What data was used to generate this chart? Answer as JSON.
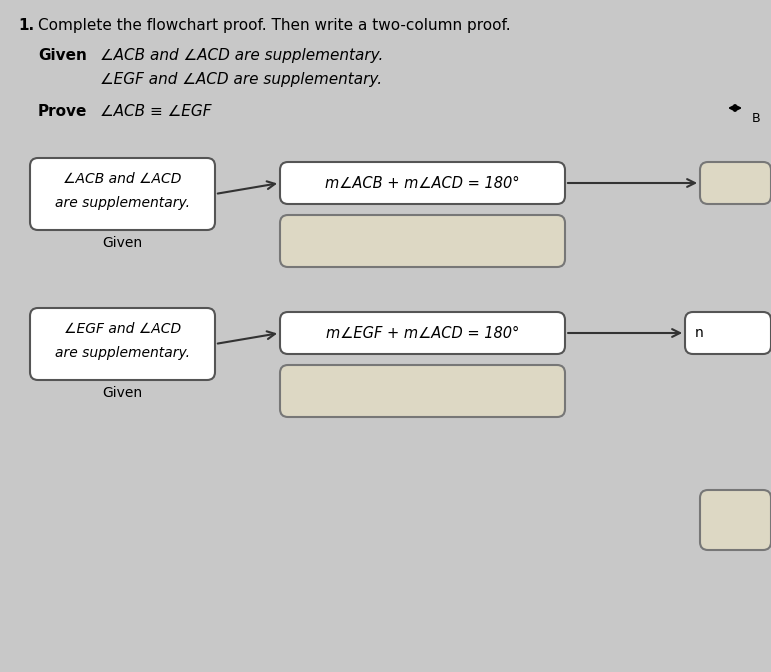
{
  "title_number": "1.",
  "title_text": "Complete the flowchart proof. Then write a two-column proof.",
  "given_label": "Given",
  "given_line1": "∠ACB and ∠ACD are supplementary.",
  "given_line2": "∠EGF and ∠ACD are supplementary.",
  "prove_label": "Prove",
  "prove_text": "∠ACB ≡ ∠EGF",
  "box1_line1": "∠ACB and ∠ACD",
  "box1_line2": "are supplementary.",
  "box1_label": "Given",
  "box2_text": "m∠ACB + m∠ACD = 180°",
  "box3_line1": "∠EGF and ∠ACD",
  "box3_line2": "are supplementary.",
  "box3_label": "Given",
  "box4_text": "m∠EGF + m∠ACD = 180°",
  "box5_label": "n",
  "bg_color": "#c8c8c8",
  "box_fill": "#ffffff",
  "box_edge": "#555555",
  "blank_fill": "#ddd8c4",
  "arrow_color": "#333333",
  "header_bg": "#c8c8c8"
}
